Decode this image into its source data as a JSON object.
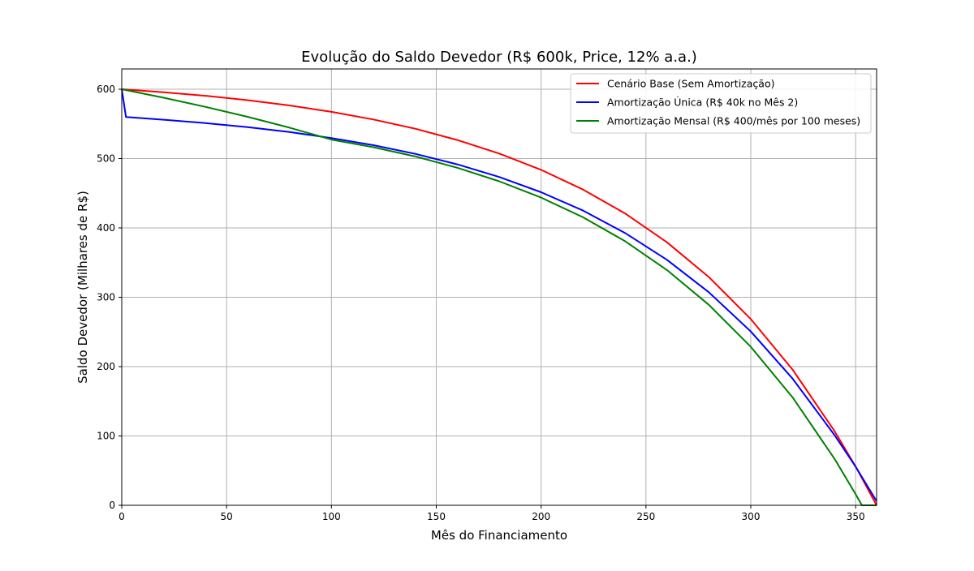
{
  "chart_data": {
    "type": "line",
    "title": "Evolução do Saldo Devedor (R$ 600k, Price, 12% a.a.)",
    "xlabel": "Mês do Financiamento",
    "ylabel": "Saldo Devedor (Milhares de R$)",
    "xlim": [
      0,
      360
    ],
    "ylim": [
      0,
      630
    ],
    "xticks": [
      0,
      50,
      100,
      150,
      200,
      250,
      300,
      350
    ],
    "yticks": [
      0,
      100,
      200,
      300,
      400,
      500,
      600
    ],
    "grid": true,
    "legend_position": "top-right",
    "series": [
      {
        "name": "Cenário Base (Sem Amortização)",
        "color": "#ff0000",
        "x": [
          0,
          20,
          40,
          60,
          80,
          100,
          120,
          140,
          160,
          180,
          200,
          220,
          240,
          260,
          280,
          300,
          320,
          340,
          350,
          360
        ],
        "y": [
          600,
          595.7,
          590.5,
          584.2,
          576.6,
          567.4,
          556.4,
          543.0,
          526.8,
          507.3,
          483.7,
          455.3,
          420.9,
          379.3,
          329.1,
          268.5,
          195.3,
          106.8,
          55.9,
          0
        ]
      },
      {
        "name": "Amortização Única (R$ 40k no Mês 2)",
        "color": "#0000ff",
        "x": [
          0,
          2,
          20,
          40,
          60,
          80,
          100,
          120,
          140,
          160,
          180,
          200,
          220,
          240,
          260,
          280,
          300,
          320,
          340,
          350,
          360
        ],
        "y": [
          600,
          560,
          556,
          551.1,
          545.3,
          538.2,
          529.6,
          519.3,
          506.8,
          491.7,
          473.5,
          451.5,
          425,
          392.8,
          354,
          307.2,
          250.6,
          182.3,
          101,
          55.5,
          6
        ]
      },
      {
        "name": "Amortização Mensal (R$ 400/mês por 100 meses)",
        "color": "#008000",
        "x": [
          0,
          20,
          40,
          60,
          80,
          100,
          120,
          140,
          160,
          180,
          200,
          220,
          240,
          260,
          280,
          300,
          320,
          340,
          350,
          353,
          360
        ],
        "y": [
          600,
          587.7,
          574.5,
          560.2,
          544.6,
          527.4,
          516.4,
          503,
          486.8,
          467.3,
          443.7,
          415.3,
          380.9,
          339.3,
          289.1,
          228.5,
          155.3,
          66.8,
          15.9,
          0,
          0
        ]
      }
    ]
  }
}
